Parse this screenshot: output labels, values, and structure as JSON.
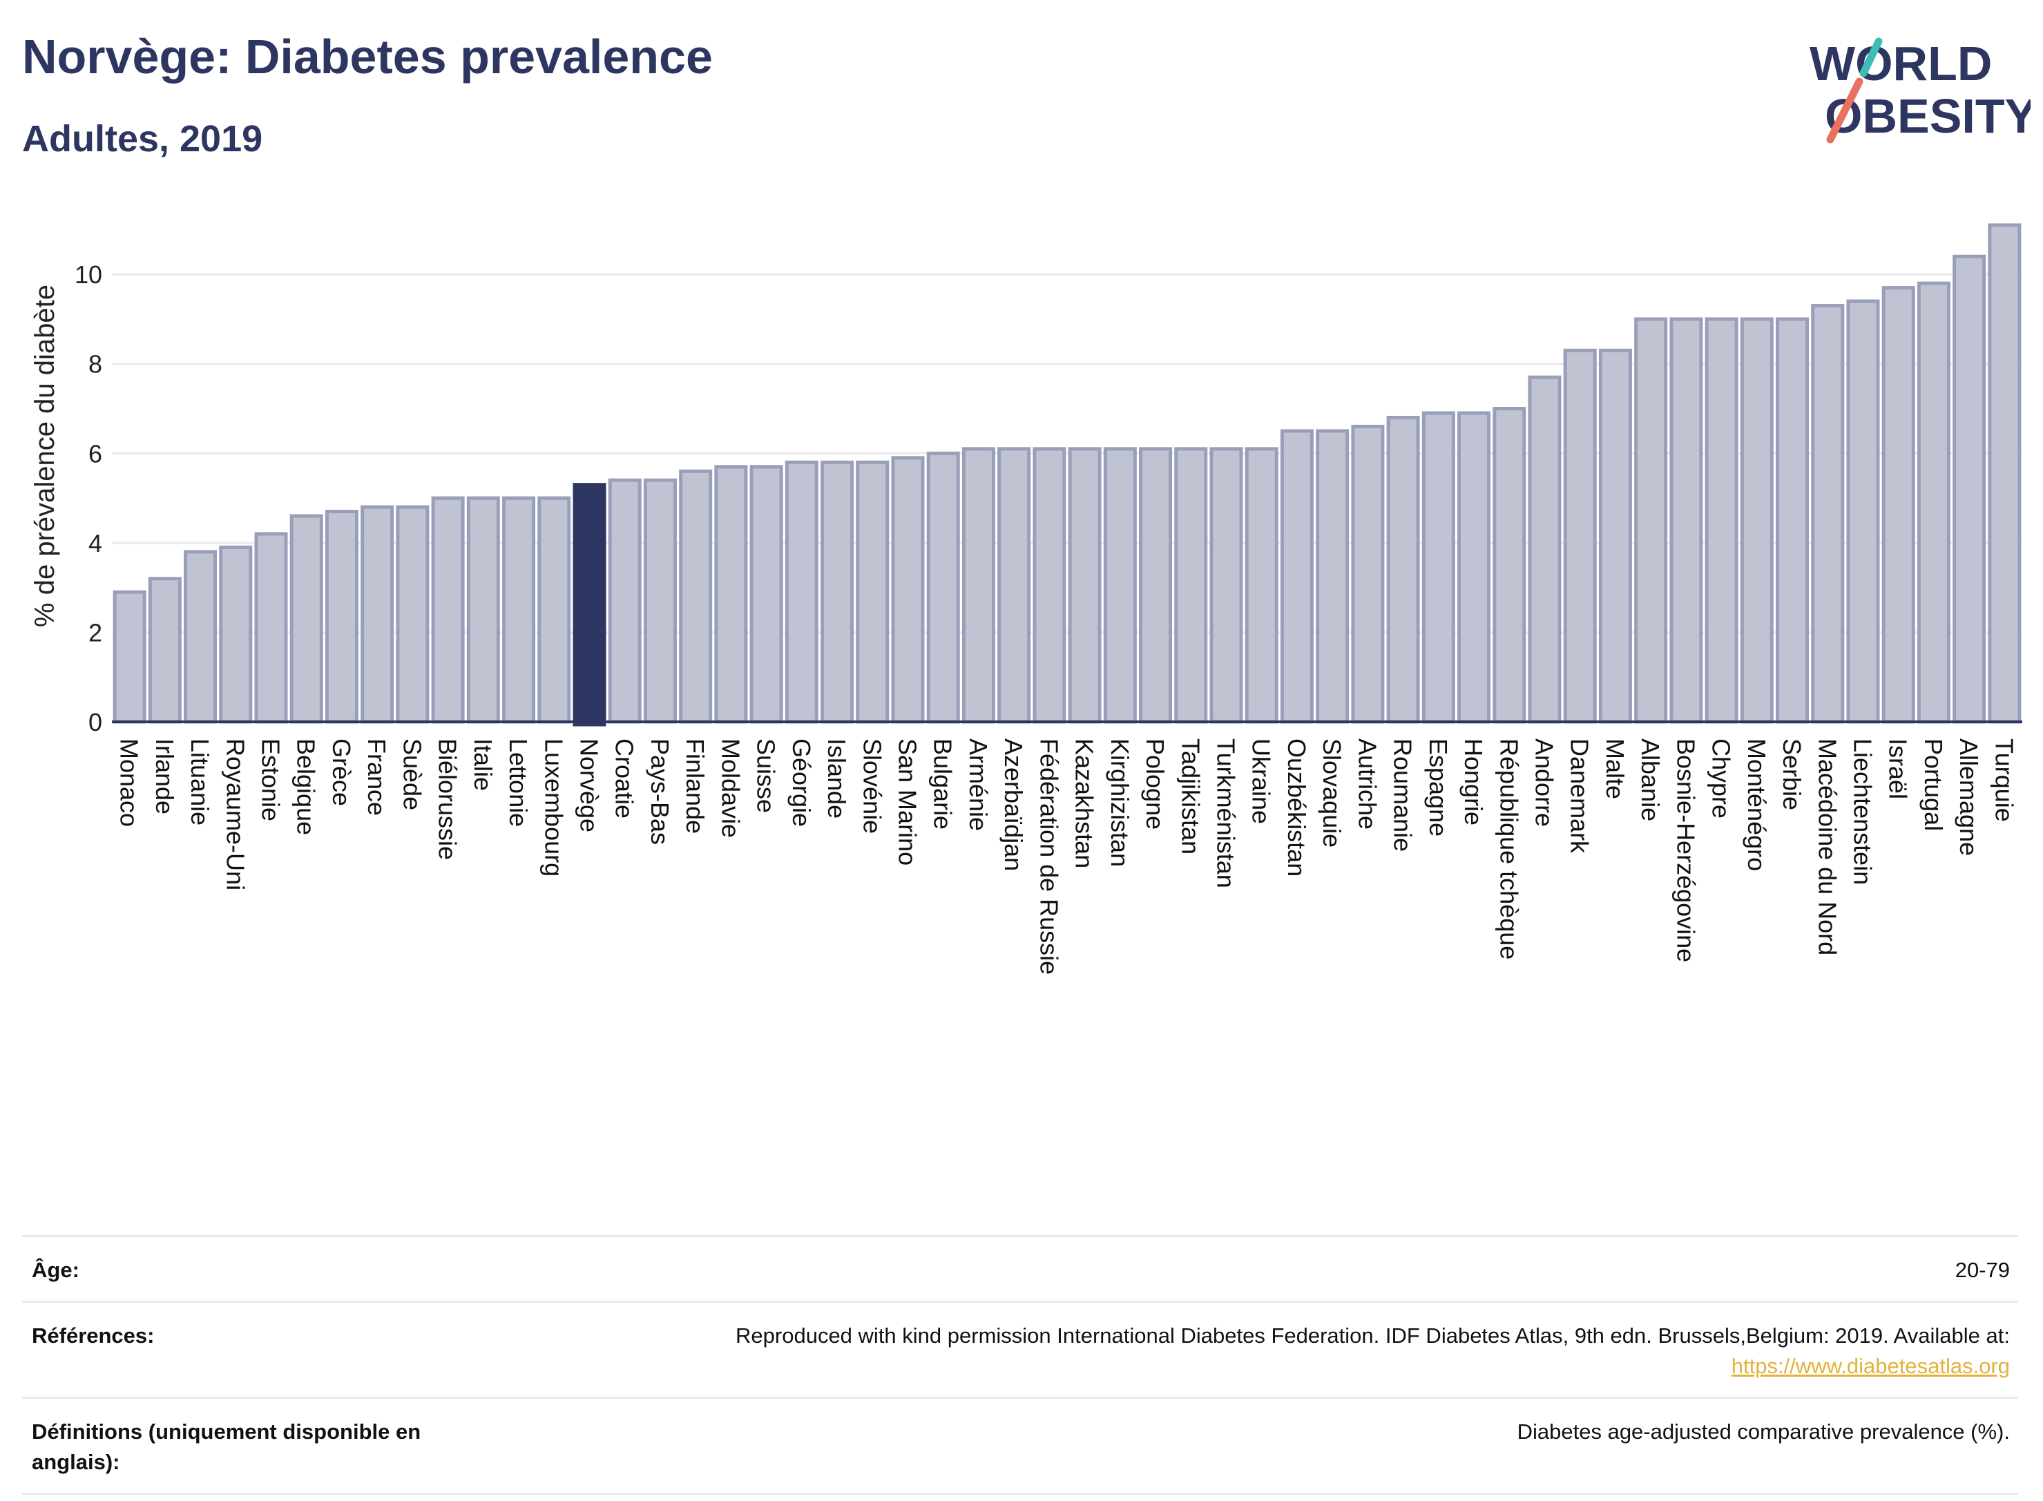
{
  "header": {
    "title": "Norvège: Diabetes prevalence",
    "subtitle": "Adultes, 2019"
  },
  "logo": {
    "line1": "WORLD",
    "line2": "OBESITY",
    "colors": {
      "text": "#2d3561",
      "teal": "#3dbdb4",
      "coral": "#e8715f"
    }
  },
  "chart_data": {
    "type": "bar",
    "ylabel": "% de prévalence du diabète",
    "ylim": [
      0,
      11.5
    ],
    "yticks": [
      0,
      2,
      4,
      6,
      8,
      10
    ],
    "grid": true,
    "highlight": "Norvège",
    "colors": {
      "bar": "#bfc3d2",
      "bar_border": "#9a9fb9",
      "highlight": "#2d3561",
      "grid": "#e8e8ee",
      "axis": "#2d3561"
    },
    "categories": [
      "Monaco",
      "Irlande",
      "Lituanie",
      "Royaume-Uni",
      "Estonie",
      "Belgique",
      "Grèce",
      "France",
      "Suède",
      "Biélorussie",
      "Italie",
      "Lettonie",
      "Luxembourg",
      "Norvège",
      "Croatie",
      "Pays-Bas",
      "Finlande",
      "Moldavie",
      "Suisse",
      "Géorgie",
      "Islande",
      "Slovénie",
      "San Marino",
      "Bulgarie",
      "Arménie",
      "Azerbaïdjan",
      "Fédération de Russie",
      "Kazakhstan",
      "Kirghizistan",
      "Pologne",
      "Tadjikistan",
      "Turkménistan",
      "Ukraine",
      "Ouzbékistan",
      "Slovaquie",
      "Autriche",
      "Roumanie",
      "Espagne",
      "Hongrie",
      "République tchèque",
      "Andorre",
      "Danemark",
      "Malte",
      "Albanie",
      "Bosnie-Herzégovine",
      "Chypre",
      "Monténégro",
      "Serbie",
      "Macédoine du Nord",
      "Liechtenstein",
      "Israël",
      "Portugal",
      "Allemagne",
      "Turquie"
    ],
    "values": [
      2.9,
      3.2,
      3.8,
      3.9,
      4.2,
      4.6,
      4.7,
      4.8,
      4.8,
      5.0,
      5.0,
      5.0,
      5.0,
      5.3,
      5.4,
      5.4,
      5.6,
      5.7,
      5.7,
      5.8,
      5.8,
      5.8,
      5.9,
      6.0,
      6.1,
      6.1,
      6.1,
      6.1,
      6.1,
      6.1,
      6.1,
      6.1,
      6.1,
      6.5,
      6.5,
      6.6,
      6.8,
      6.9,
      6.9,
      7.0,
      7.7,
      8.3,
      8.3,
      9.0,
      9.0,
      9.0,
      9.0,
      9.0,
      9.3,
      9.4,
      9.7,
      9.8,
      10.4,
      11.1
    ]
  },
  "info": {
    "age_label": "Âge:",
    "age_value": "20-79",
    "references_label": "Références:",
    "references_value": "Reproduced with kind permission International Diabetes Federation. IDF Diabetes Atlas, 9th edn. Brussels,Belgium: 2019. Available at:",
    "references_link": "https://www.diabetesatlas.org",
    "definitions_label": "Définitions (uniquement disponible en anglais):",
    "definitions_value": "Diabetes age-adjusted comparative prevalence (%)."
  }
}
